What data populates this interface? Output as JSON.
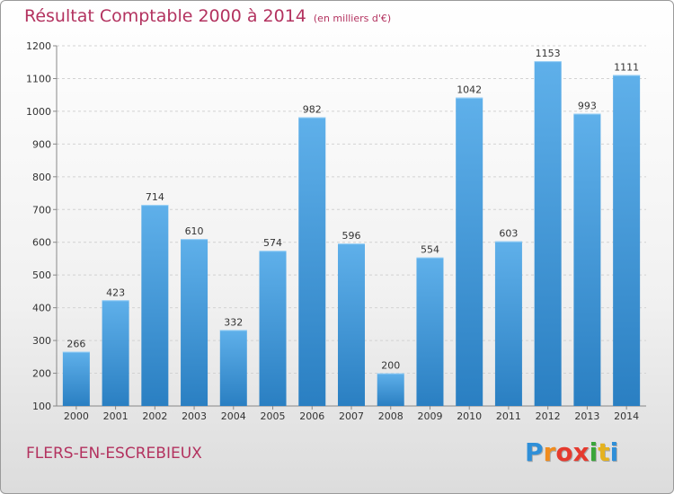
{
  "title": "Résultat Comptable 2000 à 2014",
  "subtitle": "(en milliers d'€)",
  "place": "FLERS-EN-ESCREBIEUX",
  "logo": {
    "letters": [
      "P",
      "r",
      "o",
      "x",
      "i",
      "t",
      "i"
    ],
    "colors": [
      "#2f8fd8",
      "#f08c1e",
      "#e53a2e",
      "#e53a2e",
      "#3aa53a",
      "#e5b21e",
      "#2f8fd8"
    ]
  },
  "colors": {
    "title": "#b3325f",
    "bar_light": "#5fb0ea",
    "bar_dark": "#2a7fc2",
    "grid": "#d2d2d2"
  },
  "chart_data": {
    "type": "bar",
    "categories": [
      "2000",
      "2001",
      "2002",
      "2003",
      "2004",
      "2005",
      "2006",
      "2007",
      "2008",
      "2009",
      "2010",
      "2011",
      "2012",
      "2013",
      "2014"
    ],
    "values": [
      266,
      423,
      714,
      610,
      332,
      574,
      982,
      596,
      200,
      554,
      1042,
      603,
      1153,
      993,
      1111
    ],
    "value_labels": [
      "266",
      "423",
      "714",
      "610",
      "332",
      "574",
      "982",
      "596",
      "200",
      "554",
      "1042",
      "603",
      "1153",
      "993",
      "1111"
    ],
    "ylim": [
      100,
      1200
    ],
    "yticks": [
      "100",
      "200",
      "300",
      "400",
      "500",
      "600",
      "700",
      "800",
      "900",
      "1000",
      "1100",
      "1200"
    ],
    "grid": true
  }
}
